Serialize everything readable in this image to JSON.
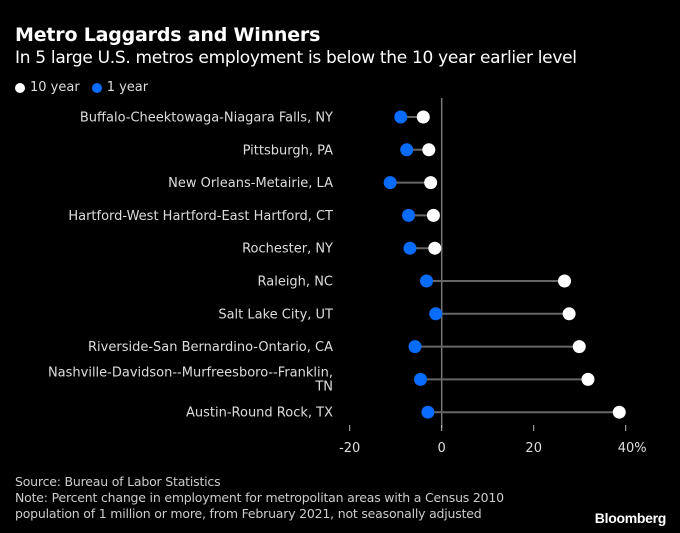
{
  "header": {
    "title": "Metro Laggards and Winners",
    "subtitle": "In 5 large U.S. metros employment is below the 10 year earlier level"
  },
  "legend": [
    {
      "label": "10 year",
      "color": "#ffffff"
    },
    {
      "label": "1 year",
      "color": "#0a6cff"
    }
  ],
  "footer": {
    "source": "Source: Bureau of Labor Statistics",
    "note_line1": "Note: Percent change in employment for metropolitan areas with a Census 2010",
    "note_line2": "population of 1 million or more, from February 2021, not seasonally adjusted",
    "brand": "Bloomberg"
  },
  "chart_data": {
    "type": "dumbbell",
    "title": "Metro Laggards and Winners",
    "subtitle": "In 5 large U.S. metros employment is below the 10 year earlier level",
    "xlabel": "",
    "ylabel": "",
    "xlim": [
      -22,
      43
    ],
    "x_ticks": [
      -20,
      0,
      20,
      40
    ],
    "x_tick_labels": [
      "-20",
      "0",
      "20",
      "40%"
    ],
    "legend_position": "top-left",
    "grid": false,
    "categories": [
      [
        "Buffalo-Cheektowaga-Niagara Falls, NY"
      ],
      [
        "Pittsburgh, PA"
      ],
      [
        "New Orleans-Metairie, LA"
      ],
      [
        "Hartford-West Hartford-East Hartford, CT"
      ],
      [
        "Rochester, NY"
      ],
      [
        "Raleigh, NC"
      ],
      [
        "Salt Lake City, UT"
      ],
      [
        "Riverside-San Bernardino-Ontario, CA"
      ],
      [
        "Nashville-Davidson--Murfreesboro--Franklin,",
        "TN"
      ],
      [
        "Austin-Round Rock, TX"
      ]
    ],
    "series": [
      {
        "name": "10 year",
        "color": "#ffffff",
        "values": [
          -4.0,
          -2.8,
          -2.4,
          -1.8,
          -1.5,
          26.7,
          27.7,
          29.9,
          31.8,
          38.6
        ]
      },
      {
        "name": "1 year",
        "color": "#0a6cff",
        "values": [
          -8.9,
          -7.6,
          -11.2,
          -7.2,
          -6.9,
          -3.3,
          -1.3,
          -5.8,
          -4.6,
          -3.0
        ]
      }
    ],
    "connector_color": "#666666",
    "zero_line_color": "#777777"
  }
}
